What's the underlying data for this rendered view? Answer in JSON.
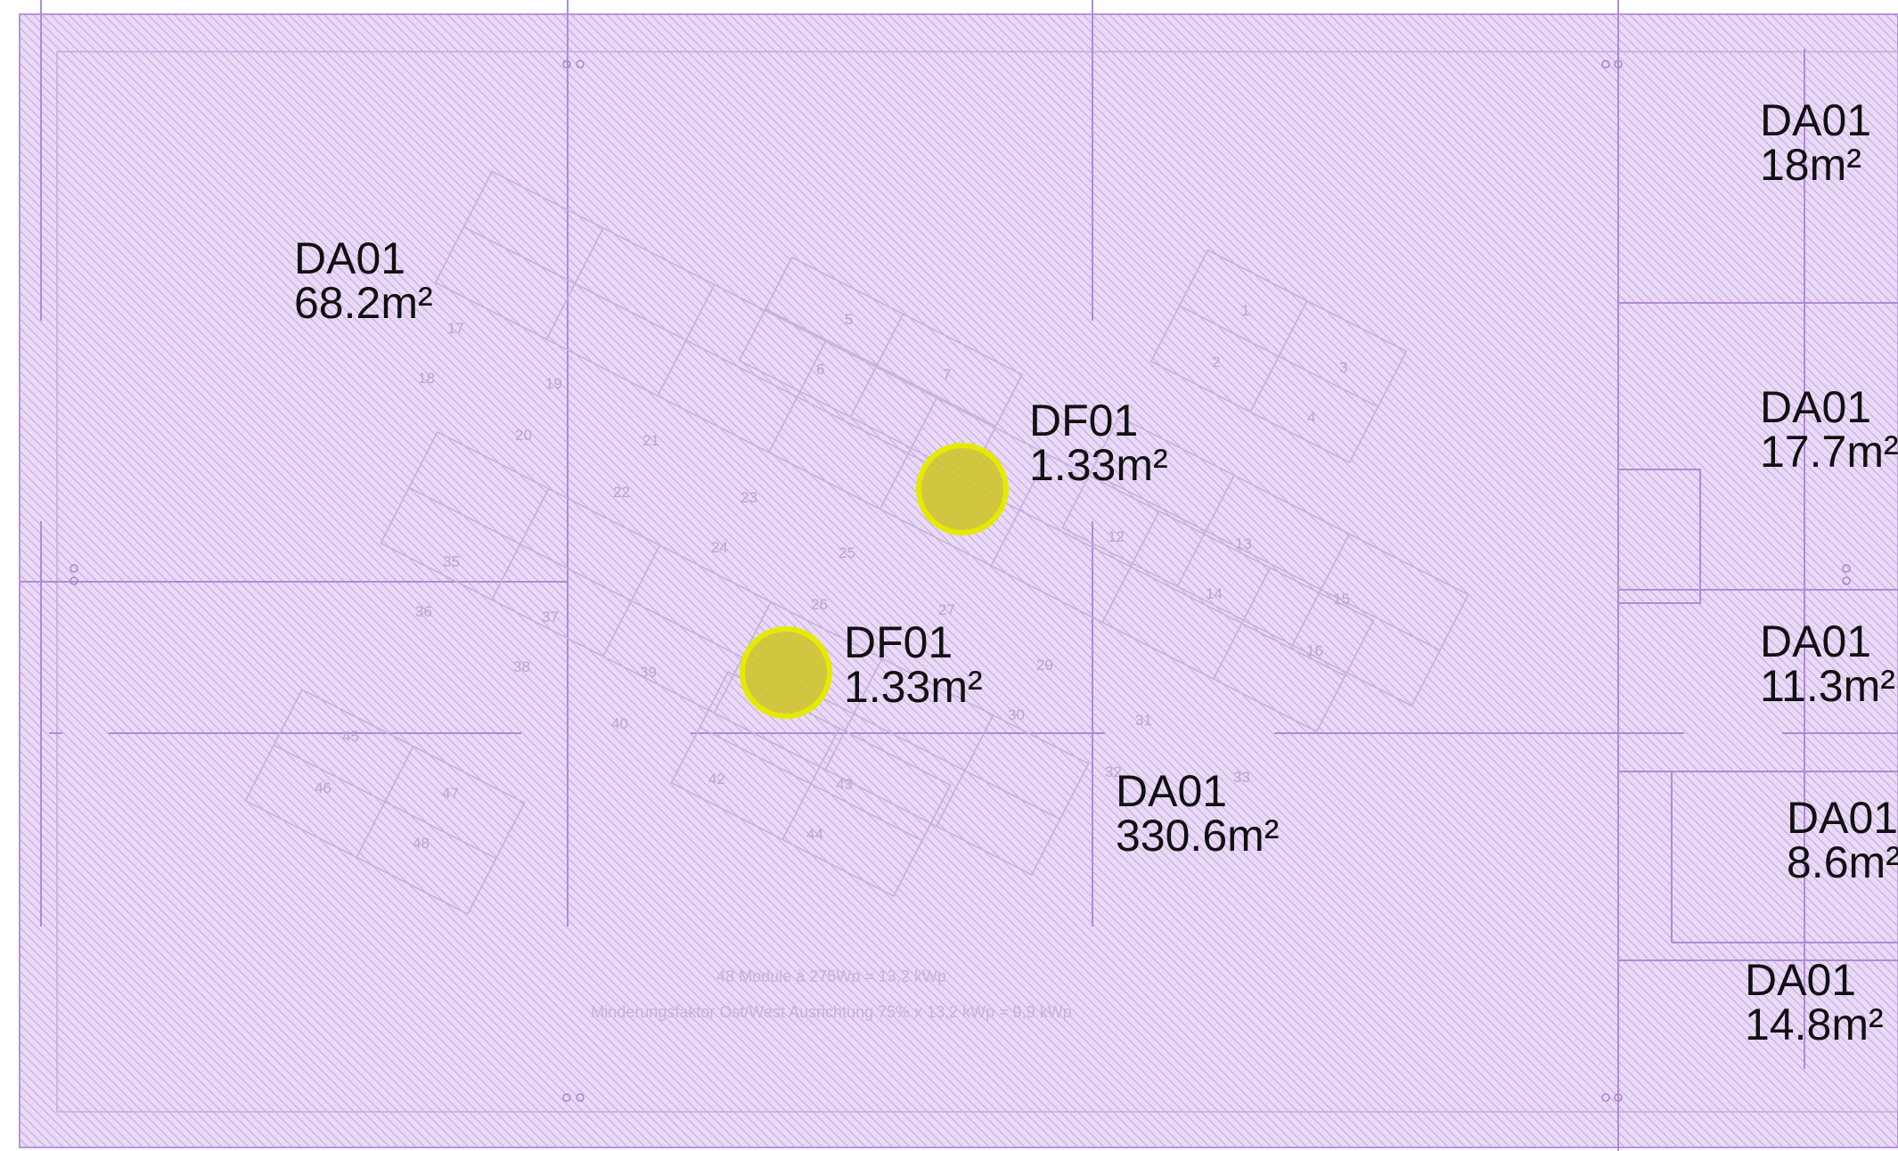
{
  "colors": {
    "hatch_fill": "#e6d6f3",
    "hatch_line": "#c9a9e6",
    "grid_line": "#b48fd9",
    "marker_fill": "#c9c12a",
    "marker_stroke": "#e8ea00",
    "module_stroke": "#c8b6db",
    "label_text": "#111111"
  },
  "zones": [
    {
      "code": "DA01",
      "area": "68.2m²"
    },
    {
      "code": "DA01",
      "area": "18m²"
    },
    {
      "code": "DA01",
      "area": "17.7m²"
    },
    {
      "code": "DA01",
      "area": "11.3m²"
    },
    {
      "code": "DA01",
      "area": "8.6m²"
    },
    {
      "code": "DA01",
      "area": "14.8m²"
    },
    {
      "code": "DA01",
      "area": "330.6m²"
    },
    {
      "code": "DF01",
      "area": "1.33m²"
    },
    {
      "code": "DF01",
      "area": "1.33m²"
    }
  ],
  "module_numbers": [
    "1",
    "2",
    "3",
    "4",
    "5",
    "6",
    "7",
    "12",
    "13",
    "14",
    "15",
    "16",
    "17",
    "18",
    "19",
    "20",
    "21",
    "22",
    "23",
    "24",
    "25",
    "26",
    "27",
    "29",
    "30",
    "31",
    "32",
    "33",
    "35",
    "36",
    "37",
    "38",
    "39",
    "40",
    "42",
    "43",
    "44",
    "45",
    "46",
    "47",
    "48"
  ],
  "notes": {
    "line1": "48 Module à 275Wp =  13,2 kWp",
    "line2": "Minderungsfaktor Ost/West Ausrichtung 75% x 13,2 kWp = 9,9 kWp"
  }
}
